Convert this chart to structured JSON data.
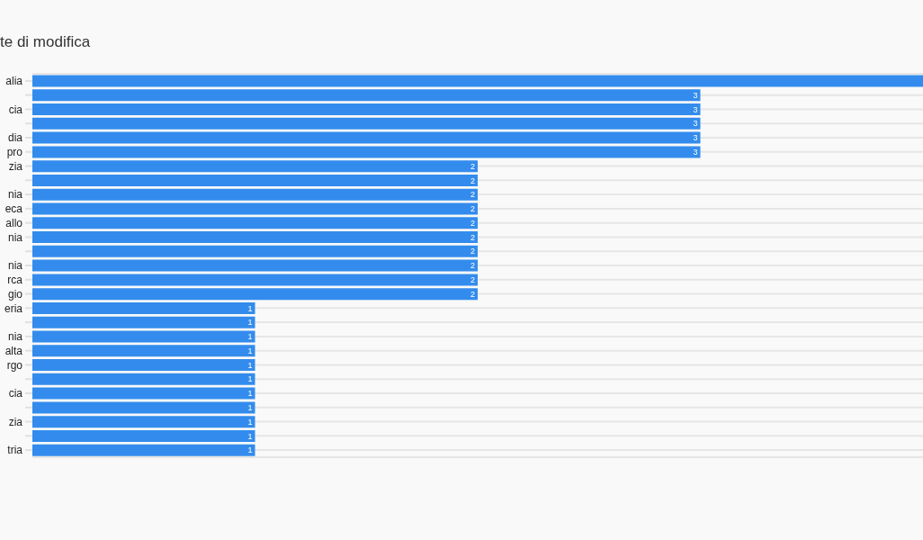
{
  "chart_data": {
    "type": "bar",
    "orientation": "horizontal",
    "title": "te di modifica",
    "categories": [
      "alia",
      null,
      "cia",
      null,
      "dia",
      "pro",
      "zia",
      null,
      "nia",
      "eca",
      "allo",
      "nia",
      null,
      "nia",
      "rca",
      "gio",
      "eria",
      null,
      "nia",
      "alta",
      "rgo",
      null,
      "cia",
      null,
      "zia",
      null,
      "tria"
    ],
    "values": [
      4,
      3,
      3,
      3,
      3,
      3,
      2,
      2,
      2,
      2,
      2,
      2,
      2,
      2,
      2,
      2,
      1,
      1,
      1,
      1,
      1,
      1,
      1,
      1,
      1,
      1,
      1
    ],
    "value_labels": [
      null,
      "3",
      "3",
      "3",
      "3",
      "3",
      "2",
      "2",
      "2",
      "2",
      "2",
      "2",
      "2",
      "2",
      "2",
      "2",
      "1",
      "1",
      "1",
      "1",
      "1",
      "1",
      "1",
      "1",
      "1",
      "1",
      "1"
    ],
    "color": "#338ced",
    "xlim": [
      0,
      4
    ],
    "grid": "y",
    "tick_labels": "y"
  }
}
